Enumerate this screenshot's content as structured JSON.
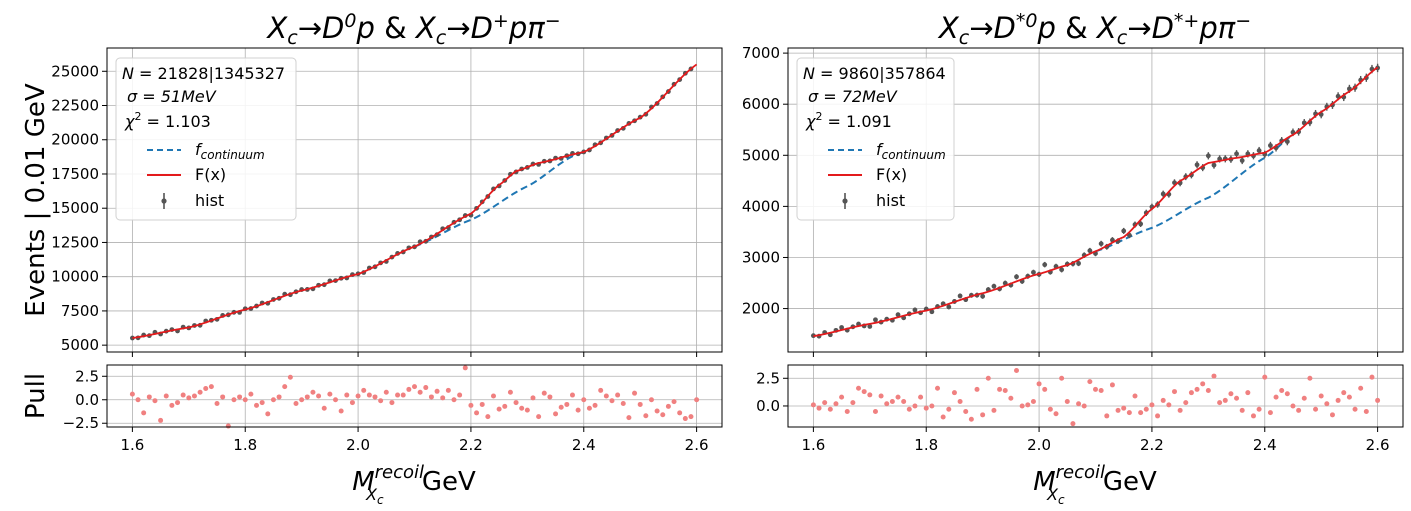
{
  "colors": {
    "data": "#555555",
    "fit": "#e31a1c",
    "continuum": "#1f77b4",
    "pull": "#f08080",
    "grid": "#b0b0b0"
  },
  "chart_data": [
    {
      "type": "line",
      "title": "X_c → D^0 p & X_c → D^+ pπ^-",
      "title_parts": {
        "lhs1": "X",
        "sub1": "c",
        "arrow1": "→",
        "rhs1": "D",
        "sup1": "0",
        "tail1": "p",
        "amp": "&",
        "lhs2": "X",
        "sub2": "c",
        "arrow2": "→",
        "rhs2": "D",
        "sup2": "+",
        "tail2": "pπ",
        "sup3": "−"
      },
      "ylabel": "Events | 0.01 GeV",
      "pull_ylabel": "Pull",
      "xlabel": {
        "main": "M",
        "sup": "recoil",
        "sub": "X",
        "subsub": "c",
        "unit": "GeV"
      },
      "xlim": [
        1.555,
        2.645
      ],
      "ylim": [
        4500,
        26700
      ],
      "yticks": [
        5000,
        7500,
        10000,
        12500,
        15000,
        17500,
        20000,
        22500,
        25000
      ],
      "xticks": [
        1.6,
        1.8,
        2.0,
        2.2,
        2.4,
        2.6
      ],
      "pull_ylim": [
        -2.9,
        3.7
      ],
      "pull_yticks": [
        -2.5,
        0.0,
        2.5
      ],
      "legend_placement": "top-left",
      "stats": {
        "N_label": "N",
        "N_value": "21828|1345327",
        "sigma_label": "σ",
        "sigma_value": "51MeV",
        "chi_label": "χ",
        "chi_exp": "2",
        "chi_value": "1.103"
      },
      "legend": {
        "continuum_f": "f",
        "continuum_sub": "continuum",
        "fit": "F(x)",
        "hist": "hist"
      },
      "fit_points": [
        [
          1.6,
          5520
        ],
        [
          1.7,
          6290
        ],
        [
          1.8,
          7600
        ],
        [
          1.9,
          8990
        ],
        [
          2.0,
          10190
        ],
        [
          2.1,
          12200
        ],
        [
          2.2,
          14600
        ],
        [
          2.25,
          16700
        ],
        [
          2.28,
          17700
        ],
        [
          2.32,
          18300
        ],
        [
          2.4,
          19100
        ],
        [
          2.5,
          21600
        ],
        [
          2.6,
          25500
        ]
      ],
      "continuum_points": [
        [
          2.1,
          12200
        ],
        [
          2.2,
          14150
        ],
        [
          2.3,
          16600
        ],
        [
          2.38,
          18800
        ],
        [
          2.4,
          19100
        ]
      ],
      "hist_residuals": [
        0,
        -50,
        80,
        -40,
        120,
        -90,
        30,
        60,
        -120,
        90,
        -30,
        40,
        -70,
        110,
        20,
        -60,
        80,
        -20,
        30,
        -100,
        60,
        -40,
        10,
        90,
        -80,
        40,
        -30,
        120,
        -60,
        20,
        70,
        -20,
        -90,
        50,
        -40,
        100,
        -10,
        30,
        -70,
        60,
        20,
        -50,
        90,
        -30,
        40,
        -80,
        10,
        60,
        -40,
        70,
        -20,
        150,
        -40,
        30,
        -60,
        100,
        -80,
        40,
        -20,
        60,
        -110,
        20,
        50,
        -30,
        80,
        -70,
        10,
        90,
        -50,
        30,
        -20,
        60,
        -100,
        40,
        -30,
        70,
        -60,
        20,
        80,
        -40,
        10,
        -50,
        90,
        -20,
        60,
        -30,
        40,
        -70,
        30,
        -10,
        50,
        -60,
        100,
        -40,
        20,
        -30,
        60,
        -20,
        40,
        -10
      ],
      "pull_values": [
        0.6,
        0.0,
        -1.4,
        0.3,
        -0.1,
        -2.2,
        0.4,
        -0.6,
        -0.3,
        0.5,
        0.2,
        0.4,
        0.8,
        1.2,
        1.4,
        -0.4,
        0.3,
        -2.8,
        0.0,
        0.3,
        0.0,
        0.6,
        -0.6,
        -0.3,
        -1.5,
        0.0,
        0.3,
        1.4,
        2.4,
        -0.4,
        0.0,
        0.3,
        0.8,
        0.4,
        -0.9,
        0.6,
        0.0,
        -1.2,
        0.5,
        -0.3,
        0.4,
        1.0,
        0.5,
        0.3,
        -0.1,
        0.8,
        -0.3,
        0.5,
        0.5,
        1.1,
        1.4,
        0.8,
        1.3,
        0.3,
        0.9,
        0.2,
        1.0,
        0.0,
        0.5,
        3.4,
        -0.6,
        -1.4,
        -0.5,
        -1.8,
        0.4,
        -1.0,
        -0.7,
        0.8,
        -0.3,
        -0.9,
        -1.1,
        0.2,
        -1.8,
        0.7,
        0.3,
        -1.5,
        -0.8,
        -0.5,
        0.5,
        -1.1,
        0.0,
        -0.9,
        -0.6,
        1.0,
        0.4,
        -0.1,
        0.5,
        -0.4,
        -1.9,
        0.7,
        -0.5,
        -1.7,
        0.0,
        -1.2,
        -1.6,
        -0.7,
        -0.2,
        -1.4,
        -2.0,
        -1.8,
        0.0
      ]
    },
    {
      "type": "line",
      "title": "X_c → D^*0 p & X_c → D^*+ pπ^-",
      "title_parts": {
        "lhs1": "X",
        "sub1": "c",
        "arrow1": "→",
        "rhs1": "D",
        "sup1": "*0",
        "tail1": "p",
        "amp": "&",
        "lhs2": "X",
        "sub2": "c",
        "arrow2": "→",
        "rhs2": "D",
        "sup2": "*+",
        "tail2": "pπ",
        "sup3": "−"
      },
      "xlabel": {
        "main": "M",
        "sup": "recoil",
        "sub": "X",
        "subsub": "c",
        "unit": "GeV"
      },
      "xlim": [
        1.555,
        2.645
      ],
      "ylim": [
        1150,
        7100
      ],
      "yticks": [
        2000,
        3000,
        4000,
        5000,
        6000,
        7000
      ],
      "xticks": [
        1.6,
        1.8,
        2.0,
        2.2,
        2.4,
        2.6
      ],
      "pull_ylim": [
        -1.9,
        3.7
      ],
      "pull_yticks": [
        0.0,
        2.5
      ],
      "legend_placement": "top-left",
      "stats": {
        "N_label": "N",
        "N_value": "9860|357864",
        "sigma_label": "σ",
        "sigma_value": "72MeV",
        "chi_label": "χ",
        "chi_exp": "2",
        "chi_value": "1.091"
      },
      "legend": {
        "continuum_f": "f",
        "continuum_sub": "continuum",
        "fit": "F(x)",
        "hist": "hist"
      },
      "fit_points": [
        [
          1.6,
          1460
        ],
        [
          1.7,
          1700
        ],
        [
          1.8,
          1960
        ],
        [
          1.9,
          2300
        ],
        [
          2.0,
          2680
        ],
        [
          2.05,
          2850
        ],
        [
          2.1,
          3120
        ],
        [
          2.15,
          3400
        ],
        [
          2.2,
          3950
        ],
        [
          2.25,
          4500
        ],
        [
          2.3,
          4850
        ],
        [
          2.35,
          4950
        ],
        [
          2.4,
          5050
        ],
        [
          2.45,
          5400
        ],
        [
          2.5,
          5850
        ],
        [
          2.55,
          6250
        ],
        [
          2.6,
          6720
        ]
      ],
      "continuum_points": [
        [
          2.1,
          3120
        ],
        [
          2.2,
          3580
        ],
        [
          2.3,
          4170
        ],
        [
          2.4,
          4950
        ],
        [
          2.45,
          5400
        ]
      ],
      "hist_residuals": [
        10,
        -20,
        30,
        -40,
        20,
        50,
        -30,
        10,
        40,
        -20,
        -50,
        60,
        -10,
        20,
        -30,
        50,
        -40,
        10,
        60,
        -20,
        30,
        -50,
        20,
        40,
        -60,
        10,
        80,
        -30,
        20,
        -10,
        -60,
        40,
        70,
        -20,
        50,
        -30,
        90,
        -40,
        20,
        60,
        -10,
        150,
        -30,
        40,
        -60,
        20,
        -20,
        -70,
        30,
        60,
        -40,
        100,
        -20,
        50,
        -30,
        120,
        -60,
        30,
        -80,
        20,
        40,
        -10,
        80,
        -50,
        60,
        -40,
        20,
        -20,
        100,
        -30,
        140,
        -60,
        40,
        20,
        -10,
        80,
        -70,
        40,
        -20,
        60,
        -30,
        80,
        -40,
        20,
        -70,
        50,
        -20,
        60,
        -30,
        40,
        -50,
        30,
        -20,
        60,
        -40,
        50,
        -10,
        40,
        -20,
        50,
        -10
      ],
      "pull_values": [
        0.1,
        -0.2,
        0.3,
        -0.3,
        0.2,
        0.8,
        -0.5,
        0.3,
        1.6,
        1.3,
        1.0,
        -0.5,
        0.9,
        0.2,
        0.4,
        0.8,
        0.4,
        -0.3,
        0.0,
        0.8,
        -0.2,
        0.0,
        1.6,
        -1.0,
        -0.3,
        1.2,
        0.4,
        -0.5,
        -1.2,
        1.5,
        -0.8,
        2.5,
        -0.4,
        1.5,
        1.4,
        0.7,
        3.2,
        0.0,
        0.1,
        0.4,
        2.0,
        1.5,
        -0.3,
        -0.7,
        2.5,
        0.4,
        -1.6,
        0.2,
        0.0,
        2.2,
        1.5,
        1.4,
        -0.9,
        1.9,
        -0.4,
        -0.2,
        -0.6,
        0.9,
        -0.6,
        -0.3,
        0.1,
        -0.9,
        0.5,
        0.1,
        1.3,
        -0.4,
        0.3,
        1.2,
        1.5,
        2.0,
        1.4,
        2.7,
        0.3,
        0.5,
        1.1,
        0.7,
        -0.4,
        1.2,
        -0.9,
        -0.3,
        2.6,
        -0.6,
        0.8,
        1.4,
        1.1,
        0.0,
        -0.4,
        0.7,
        2.5,
        -0.3,
        0.9,
        0.2,
        -0.8,
        0.5,
        1.2,
        0.8,
        -0.3,
        1.6,
        -0.5,
        2.6,
        0.5
      ]
    }
  ]
}
